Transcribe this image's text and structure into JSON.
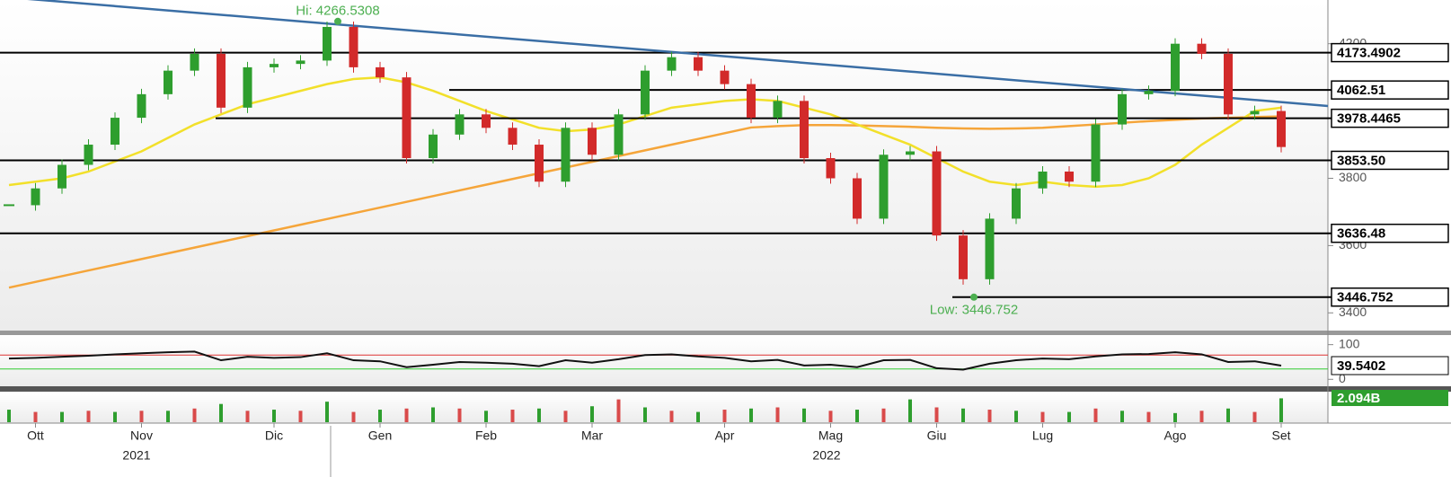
{
  "chart_data": {
    "type": "candlestick",
    "categories": [
      null,
      "Ott",
      null,
      null,
      null,
      "Nov",
      null,
      null,
      null,
      null,
      "Dic",
      null,
      null,
      null,
      "Gen",
      null,
      null,
      null,
      "Feb",
      null,
      null,
      null,
      "Mar",
      null,
      null,
      null,
      null,
      "Apr",
      null,
      null,
      null,
      "Mag",
      null,
      null,
      null,
      "Giu",
      null,
      null,
      null,
      "Lug",
      null,
      null,
      null,
      null,
      "Ago",
      null,
      null,
      null,
      "Set"
    ],
    "years": [
      "2021",
      "2022"
    ],
    "up_color": "#2e9e2e",
    "down_color": "#d22a2a",
    "values": [
      3720,
      3770,
      3840,
      3900,
      3980,
      4050,
      4120,
      4170,
      4010,
      4130,
      4140,
      4150,
      4250,
      4130,
      4100,
      3860,
      3930,
      3990,
      3950,
      3900,
      3790,
      3950,
      3870,
      3990,
      4120,
      4160,
      4120,
      4080,
      3980,
      4030,
      3860,
      3800,
      3680,
      3870,
      3880,
      3630,
      3500,
      3680,
      3770,
      3820,
      3790,
      3960,
      4050,
      4060,
      4200,
      4170,
      3990,
      4000,
      3893
    ],
    "ylim": [
      3350,
      4330
    ],
    "yticks": [
      3400,
      3600,
      3800,
      4200
    ],
    "ma50": {
      "color": "#f2e02a",
      "values": [
        3780,
        3790,
        3800,
        3820,
        3850,
        3880,
        3920,
        3960,
        3990,
        4020,
        4040,
        4060,
        4080,
        4095,
        4100,
        4085,
        4060,
        4030,
        4000,
        3975,
        3950,
        3940,
        3945,
        3960,
        3985,
        4010,
        4020,
        4030,
        4035,
        4030,
        4010,
        3990,
        3960,
        3930,
        3900,
        3860,
        3820,
        3790,
        3780,
        3790,
        3780,
        3775,
        3780,
        3800,
        3840,
        3900,
        3950,
        4000,
        4010
      ]
    },
    "ma200": {
      "color": "#f5a53a",
      "values": [
        3475,
        3492,
        3509,
        3526,
        3543,
        3560,
        3577,
        3594,
        3611,
        3628,
        3645,
        3662,
        3679,
        3696,
        3713,
        3730,
        3747,
        3764,
        3781,
        3798,
        3815,
        3832,
        3849,
        3866,
        3883,
        3900,
        3917,
        3934,
        3951,
        3955,
        3958,
        3958,
        3957,
        3955,
        3953,
        3950,
        3948,
        3947,
        3948,
        3950,
        3955,
        3960,
        3965,
        3970,
        3974,
        3978,
        3980,
        3982,
        3984
      ]
    },
    "trendline": {
      "color": "#3a6ea5",
      "values": [
        4340,
        4015
      ]
    },
    "levels": [
      {
        "value": 4173.4902,
        "label": "4173.4902"
      },
      {
        "value": 4062.51,
        "label": "4062.51"
      },
      {
        "value": 3978.4465,
        "label": "3978.4465"
      },
      {
        "value": 3853.5,
        "label": "3853.50"
      },
      {
        "value": 3636.48,
        "label": "3636.48"
      },
      {
        "value": 3446.752,
        "label": "3446.752"
      }
    ],
    "annotations": [
      {
        "text": "Hi: 4266.5308",
        "value": 4266.5308,
        "index": 12
      },
      {
        "text": "Low: 3446.752",
        "value": 3446.752,
        "index": 36
      }
    ],
    "rsi": {
      "ylim": [
        -20,
        125
      ],
      "yticks": [
        0,
        100
      ],
      "color": "#111111",
      "upper": 70,
      "upper_color": "#d33",
      "lower": 30,
      "lower_color": "#3c3",
      "values": [
        60,
        62,
        65,
        68,
        72,
        75,
        78,
        80,
        55,
        65,
        62,
        64,
        75,
        55,
        52,
        35,
        42,
        50,
        48,
        45,
        38,
        55,
        48,
        58,
        70,
        72,
        66,
        62,
        52,
        56,
        40,
        42,
        35,
        55,
        56,
        32,
        28,
        45,
        55,
        60,
        58,
        66,
        72,
        73,
        78,
        72,
        50,
        52,
        39.5402
      ]
    },
    "volume": {
      "ylim": [
        0,
        2.6
      ],
      "color": "#d94a4a",
      "last_label": "2.094B",
      "values": [
        1.1,
        0.9,
        0.9,
        1.0,
        0.9,
        1.0,
        1.0,
        1.2,
        1.6,
        1.0,
        1.1,
        1.0,
        1.8,
        0.9,
        1.1,
        1.2,
        1.3,
        1.2,
        1.0,
        1.1,
        1.2,
        1.0,
        1.4,
        2.0,
        1.3,
        1.0,
        0.9,
        1.1,
        1.2,
        1.3,
        1.2,
        1.0,
        1.1,
        1.2,
        2.0,
        1.3,
        1.2,
        1.1,
        1.0,
        0.9,
        0.9,
        1.2,
        1.0,
        0.9,
        0.8,
        1.0,
        1.2,
        0.9,
        2.094
      ]
    }
  }
}
